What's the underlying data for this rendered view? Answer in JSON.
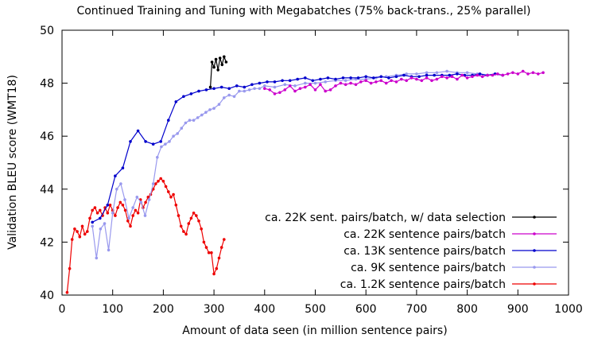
{
  "chart_data": {
    "type": "line",
    "title": "Continued Training and Tuning with Megabatches (75% back-trans., 25% parallel)",
    "xlabel": "Amount of data seen (in million sentence pairs)",
    "ylabel": "Validation BLEU score (WMT18)",
    "xlim": [
      0,
      1000
    ],
    "ylim": [
      40,
      50
    ],
    "xticks": [
      0,
      100,
      200,
      300,
      400,
      500,
      600,
      700,
      800,
      900,
      1000
    ],
    "yticks": [
      40,
      42,
      44,
      46,
      48,
      50
    ],
    "grid": false,
    "legend_position": "bottom-right",
    "series": [
      {
        "name": "ca. 22K sent. pairs/batch, w/ data selection",
        "color": "#000000",
        "x": [
          293,
          296,
          300,
          304,
          308,
          312,
          316,
          320,
          324
        ],
        "y": [
          47.85,
          48.8,
          48.6,
          48.9,
          48.5,
          48.95,
          48.7,
          49.0,
          48.8
        ]
      },
      {
        "name": "ca. 22K sentence pairs/batch",
        "color": "#cc00cc",
        "x": [
          400,
          410,
          420,
          430,
          440,
          450,
          460,
          470,
          480,
          490,
          500,
          510,
          520,
          530,
          540,
          550,
          560,
          570,
          580,
          590,
          600,
          610,
          620,
          630,
          640,
          650,
          660,
          670,
          680,
          690,
          700,
          710,
          720,
          730,
          740,
          750,
          760,
          770,
          780,
          790,
          800,
          810,
          820,
          830,
          840,
          850,
          860,
          870,
          880,
          890,
          900,
          910,
          920,
          930,
          940,
          950
        ],
        "y": [
          47.8,
          47.75,
          47.6,
          47.65,
          47.75,
          47.9,
          47.7,
          47.8,
          47.85,
          47.95,
          47.75,
          47.95,
          47.7,
          47.75,
          47.9,
          48.0,
          47.95,
          48.0,
          47.95,
          48.05,
          48.1,
          48.0,
          48.05,
          48.1,
          48.0,
          48.1,
          48.05,
          48.15,
          48.1,
          48.2,
          48.15,
          48.1,
          48.2,
          48.1,
          48.15,
          48.25,
          48.2,
          48.25,
          48.15,
          48.3,
          48.2,
          48.25,
          48.3,
          48.25,
          48.3,
          48.3,
          48.35,
          48.3,
          48.35,
          48.4,
          48.35,
          48.45,
          48.35,
          48.4,
          48.35,
          48.4
        ]
      },
      {
        "name": "ca. 13K sentence pairs/batch",
        "color": "#0000cc",
        "x": [
          60,
          75,
          90,
          105,
          120,
          135,
          150,
          165,
          180,
          195,
          210,
          225,
          240,
          255,
          270,
          285,
          300,
          315,
          330,
          345,
          360,
          375,
          390,
          405,
          420,
          435,
          450,
          465,
          480,
          495,
          510,
          525,
          540,
          555,
          570,
          585,
          600,
          615,
          630,
          645,
          660,
          675,
          690,
          705,
          720,
          735,
          750,
          765,
          780,
          795,
          810,
          825,
          840,
          855,
          870
        ],
        "y": [
          42.75,
          42.9,
          43.4,
          44.5,
          44.8,
          45.8,
          46.2,
          45.8,
          45.7,
          45.8,
          46.6,
          47.3,
          47.5,
          47.6,
          47.7,
          47.75,
          47.8,
          47.85,
          47.8,
          47.9,
          47.85,
          47.95,
          48.0,
          48.05,
          48.05,
          48.1,
          48.1,
          48.15,
          48.2,
          48.1,
          48.15,
          48.2,
          48.15,
          48.2,
          48.2,
          48.2,
          48.25,
          48.2,
          48.25,
          48.2,
          48.25,
          48.3,
          48.25,
          48.25,
          48.3,
          48.3,
          48.3,
          48.3,
          48.35,
          48.3,
          48.3,
          48.35,
          48.3,
          48.35,
          48.3
        ]
      },
      {
        "name": "ca.    9K sentence pairs/batch",
        "color": "#9999ee",
        "x": [
          60,
          68,
          76,
          84,
          92,
          100,
          108,
          116,
          124,
          132,
          140,
          148,
          156,
          164,
          172,
          180,
          188,
          196,
          204,
          212,
          220,
          228,
          236,
          244,
          252,
          260,
          268,
          276,
          284,
          292,
          300,
          310,
          320,
          330,
          340,
          350,
          360,
          370,
          380,
          390,
          400,
          420,
          440,
          460,
          480,
          500,
          520,
          540,
          560,
          580,
          600,
          620,
          640,
          660,
          680,
          700,
          720,
          740,
          760,
          780,
          800,
          820,
          840
        ],
        "y": [
          42.6,
          41.4,
          42.5,
          42.7,
          41.7,
          43.1,
          44.0,
          44.2,
          43.6,
          42.9,
          43.3,
          43.7,
          43.5,
          43.0,
          43.6,
          44.2,
          45.2,
          45.6,
          45.7,
          45.8,
          46.0,
          46.1,
          46.3,
          46.5,
          46.6,
          46.6,
          46.7,
          46.8,
          46.9,
          47.0,
          47.05,
          47.2,
          47.45,
          47.55,
          47.5,
          47.7,
          47.7,
          47.75,
          47.8,
          47.8,
          47.9,
          47.85,
          47.95,
          47.9,
          48.0,
          48.0,
          48.05,
          48.1,
          48.1,
          48.15,
          48.15,
          48.2,
          48.25,
          48.3,
          48.35,
          48.35,
          48.4,
          48.4,
          48.45,
          48.4,
          48.4,
          48.35,
          48.3
        ]
      },
      {
        "name": "ca. 1.2K sentence pairs/batch",
        "color": "#ee0000",
        "x": [
          10,
          15,
          20,
          25,
          30,
          35,
          40,
          45,
          50,
          55,
          60,
          65,
          70,
          75,
          80,
          85,
          90,
          95,
          100,
          105,
          110,
          115,
          120,
          125,
          130,
          135,
          140,
          145,
          150,
          155,
          160,
          165,
          170,
          175,
          180,
          185,
          190,
          195,
          200,
          205,
          210,
          215,
          220,
          225,
          230,
          235,
          240,
          245,
          250,
          255,
          260,
          265,
          270,
          275,
          280,
          285,
          290,
          295,
          300,
          305,
          310,
          315,
          320
        ],
        "y": [
          40.1,
          41.0,
          42.1,
          42.5,
          42.4,
          42.2,
          42.6,
          42.3,
          42.4,
          42.9,
          43.2,
          43.3,
          43.1,
          43.2,
          43.0,
          43.3,
          43.1,
          43.4,
          43.2,
          43.0,
          43.3,
          43.5,
          43.4,
          43.2,
          42.8,
          42.6,
          43.0,
          43.2,
          43.1,
          43.6,
          43.3,
          43.5,
          43.7,
          43.8,
          44.0,
          44.2,
          44.3,
          44.4,
          44.3,
          44.1,
          43.9,
          43.7,
          43.8,
          43.4,
          43.0,
          42.6,
          42.4,
          42.3,
          42.7,
          42.9,
          43.1,
          43.0,
          42.8,
          42.5,
          42.0,
          41.8,
          41.6,
          41.6,
          40.8,
          41.0,
          41.4,
          41.8,
          42.1
        ]
      }
    ]
  }
}
